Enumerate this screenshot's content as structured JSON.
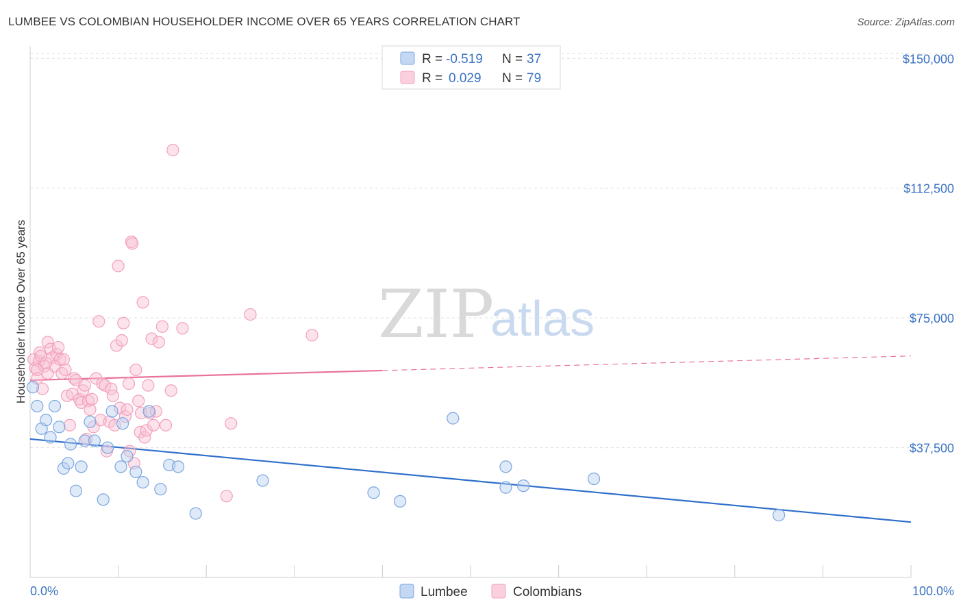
{
  "title": "LUMBEE VS COLOMBIAN HOUSEHOLDER INCOME OVER 65 YEARS CORRELATION CHART",
  "source": "Source: ZipAtlas.com",
  "watermark": {
    "zip": "ZIP",
    "atlas": "atlas"
  },
  "colors": {
    "lumbee": "#7aa6e0",
    "colombians": "#f2a0bd",
    "lumbee_line": "#2f6fca",
    "colombians_line": "#e8729b",
    "tick": "#3a72c4"
  },
  "legend": {
    "rows": [
      {
        "r_label": "R = ",
        "r_value": "-0.519",
        "n_label": "N = ",
        "n_value": "37"
      },
      {
        "r_label": "R = ",
        "r_value": "0.029",
        "n_label": "N = ",
        "n_value": "79"
      }
    ]
  },
  "chart_data": {
    "type": "scatter",
    "ylabel": "Householder Income Over 65 years",
    "xlim": [
      0,
      100
    ],
    "ylim": [
      0,
      155000
    ],
    "x_tick_labels": [
      "0.0%",
      "100.0%"
    ],
    "y_ticks": [
      {
        "value": 37500,
        "label": "$37,500"
      },
      {
        "value": 75000,
        "label": "$75,000"
      },
      {
        "value": 112500,
        "label": "$112,500"
      },
      {
        "value": 150000,
        "label": "$150,000"
      }
    ],
    "grid": "horizontal dashed",
    "series": [
      {
        "name": "Lumbee",
        "trend": {
          "x": [
            0,
            100
          ],
          "y": [
            40000,
            16000
          ],
          "dashed_from": null
        },
        "points": [
          [
            0.3,
            55000
          ],
          [
            0.8,
            49500
          ],
          [
            1.3,
            43000
          ],
          [
            1.8,
            45500
          ],
          [
            2.3,
            40500
          ],
          [
            2.8,
            49500
          ],
          [
            3.3,
            43500
          ],
          [
            3.8,
            31500
          ],
          [
            4.3,
            33000
          ],
          [
            4.6,
            38500
          ],
          [
            5.2,
            25000
          ],
          [
            5.8,
            32000
          ],
          [
            6.2,
            39500
          ],
          [
            6.8,
            45000
          ],
          [
            7.3,
            39500
          ],
          [
            8.3,
            22500
          ],
          [
            8.8,
            37500
          ],
          [
            9.3,
            48000
          ],
          [
            10.3,
            32000
          ],
          [
            10.5,
            44500
          ],
          [
            11.0,
            35000
          ],
          [
            12.0,
            30500
          ],
          [
            12.8,
            27500
          ],
          [
            13.5,
            48000
          ],
          [
            14.8,
            25500
          ],
          [
            15.8,
            32500
          ],
          [
            16.8,
            32000
          ],
          [
            18.8,
            18500
          ],
          [
            26.4,
            28000
          ],
          [
            39.0,
            24500
          ],
          [
            42.0,
            22000
          ],
          [
            48.0,
            46000
          ],
          [
            54.0,
            26000
          ],
          [
            54.0,
            32000
          ],
          [
            56.0,
            26500
          ],
          [
            64.0,
            28500
          ],
          [
            85.0,
            18000
          ]
        ]
      },
      {
        "name": "Colombians",
        "trend": {
          "x": [
            0,
            100
          ],
          "y": [
            57000,
            64000
          ],
          "dashed_from": 40
        },
        "points": [
          [
            0.4,
            63000
          ],
          [
            0.6,
            60500
          ],
          [
            0.8,
            57500
          ],
          [
            1.0,
            62500
          ],
          [
            1.1,
            65000
          ],
          [
            1.2,
            64000
          ],
          [
            1.4,
            54500
          ],
          [
            1.6,
            61000
          ],
          [
            2.0,
            59000
          ],
          [
            2.0,
            68000
          ],
          [
            2.3,
            66000
          ],
          [
            2.5,
            63500
          ],
          [
            2.8,
            61000
          ],
          [
            3.0,
            64500
          ],
          [
            3.2,
            66500
          ],
          [
            3.4,
            63000
          ],
          [
            3.6,
            59000
          ],
          [
            3.8,
            63000
          ],
          [
            4.0,
            60000
          ],
          [
            4.2,
            52500
          ],
          [
            4.5,
            44000
          ],
          [
            4.8,
            53000
          ],
          [
            5.0,
            57500
          ],
          [
            5.2,
            57000
          ],
          [
            5.6,
            51500
          ],
          [
            5.8,
            50500
          ],
          [
            6.0,
            54000
          ],
          [
            6.2,
            55500
          ],
          [
            6.4,
            40000
          ],
          [
            6.6,
            51000
          ],
          [
            6.8,
            48500
          ],
          [
            7.0,
            51500
          ],
          [
            7.2,
            43500
          ],
          [
            7.5,
            57500
          ],
          [
            7.8,
            74000
          ],
          [
            8.0,
            45500
          ],
          [
            8.2,
            56000
          ],
          [
            8.5,
            55500
          ],
          [
            8.7,
            36500
          ],
          [
            9.0,
            45000
          ],
          [
            9.2,
            54500
          ],
          [
            9.4,
            52500
          ],
          [
            9.6,
            44000
          ],
          [
            9.8,
            67000
          ],
          [
            10.0,
            90000
          ],
          [
            10.2,
            49000
          ],
          [
            10.4,
            68500
          ],
          [
            10.6,
            73500
          ],
          [
            10.8,
            46500
          ],
          [
            11.0,
            48500
          ],
          [
            11.2,
            56000
          ],
          [
            11.3,
            36500
          ],
          [
            11.5,
            97000
          ],
          [
            11.6,
            96500
          ],
          [
            11.8,
            33000
          ],
          [
            12.0,
            60000
          ],
          [
            12.3,
            51000
          ],
          [
            12.5,
            42000
          ],
          [
            12.6,
            47500
          ],
          [
            12.8,
            79500
          ],
          [
            13.0,
            40500
          ],
          [
            13.2,
            42500
          ],
          [
            13.4,
            55500
          ],
          [
            13.6,
            47500
          ],
          [
            13.8,
            69000
          ],
          [
            14.0,
            44000
          ],
          [
            14.3,
            48000
          ],
          [
            14.6,
            68000
          ],
          [
            15.0,
            72500
          ],
          [
            15.4,
            44000
          ],
          [
            16.0,
            54000
          ],
          [
            16.2,
            123500
          ],
          [
            17.3,
            72000
          ],
          [
            22.3,
            23500
          ],
          [
            22.8,
            44500
          ],
          [
            25.0,
            76000
          ],
          [
            32.0,
            70000
          ],
          [
            0.8,
            60000
          ],
          [
            1.8,
            62000
          ]
        ]
      }
    ],
    "legend_placement": "top-center and bottom",
    "bottom_legend": [
      "Lumbee",
      "Colombians"
    ]
  }
}
